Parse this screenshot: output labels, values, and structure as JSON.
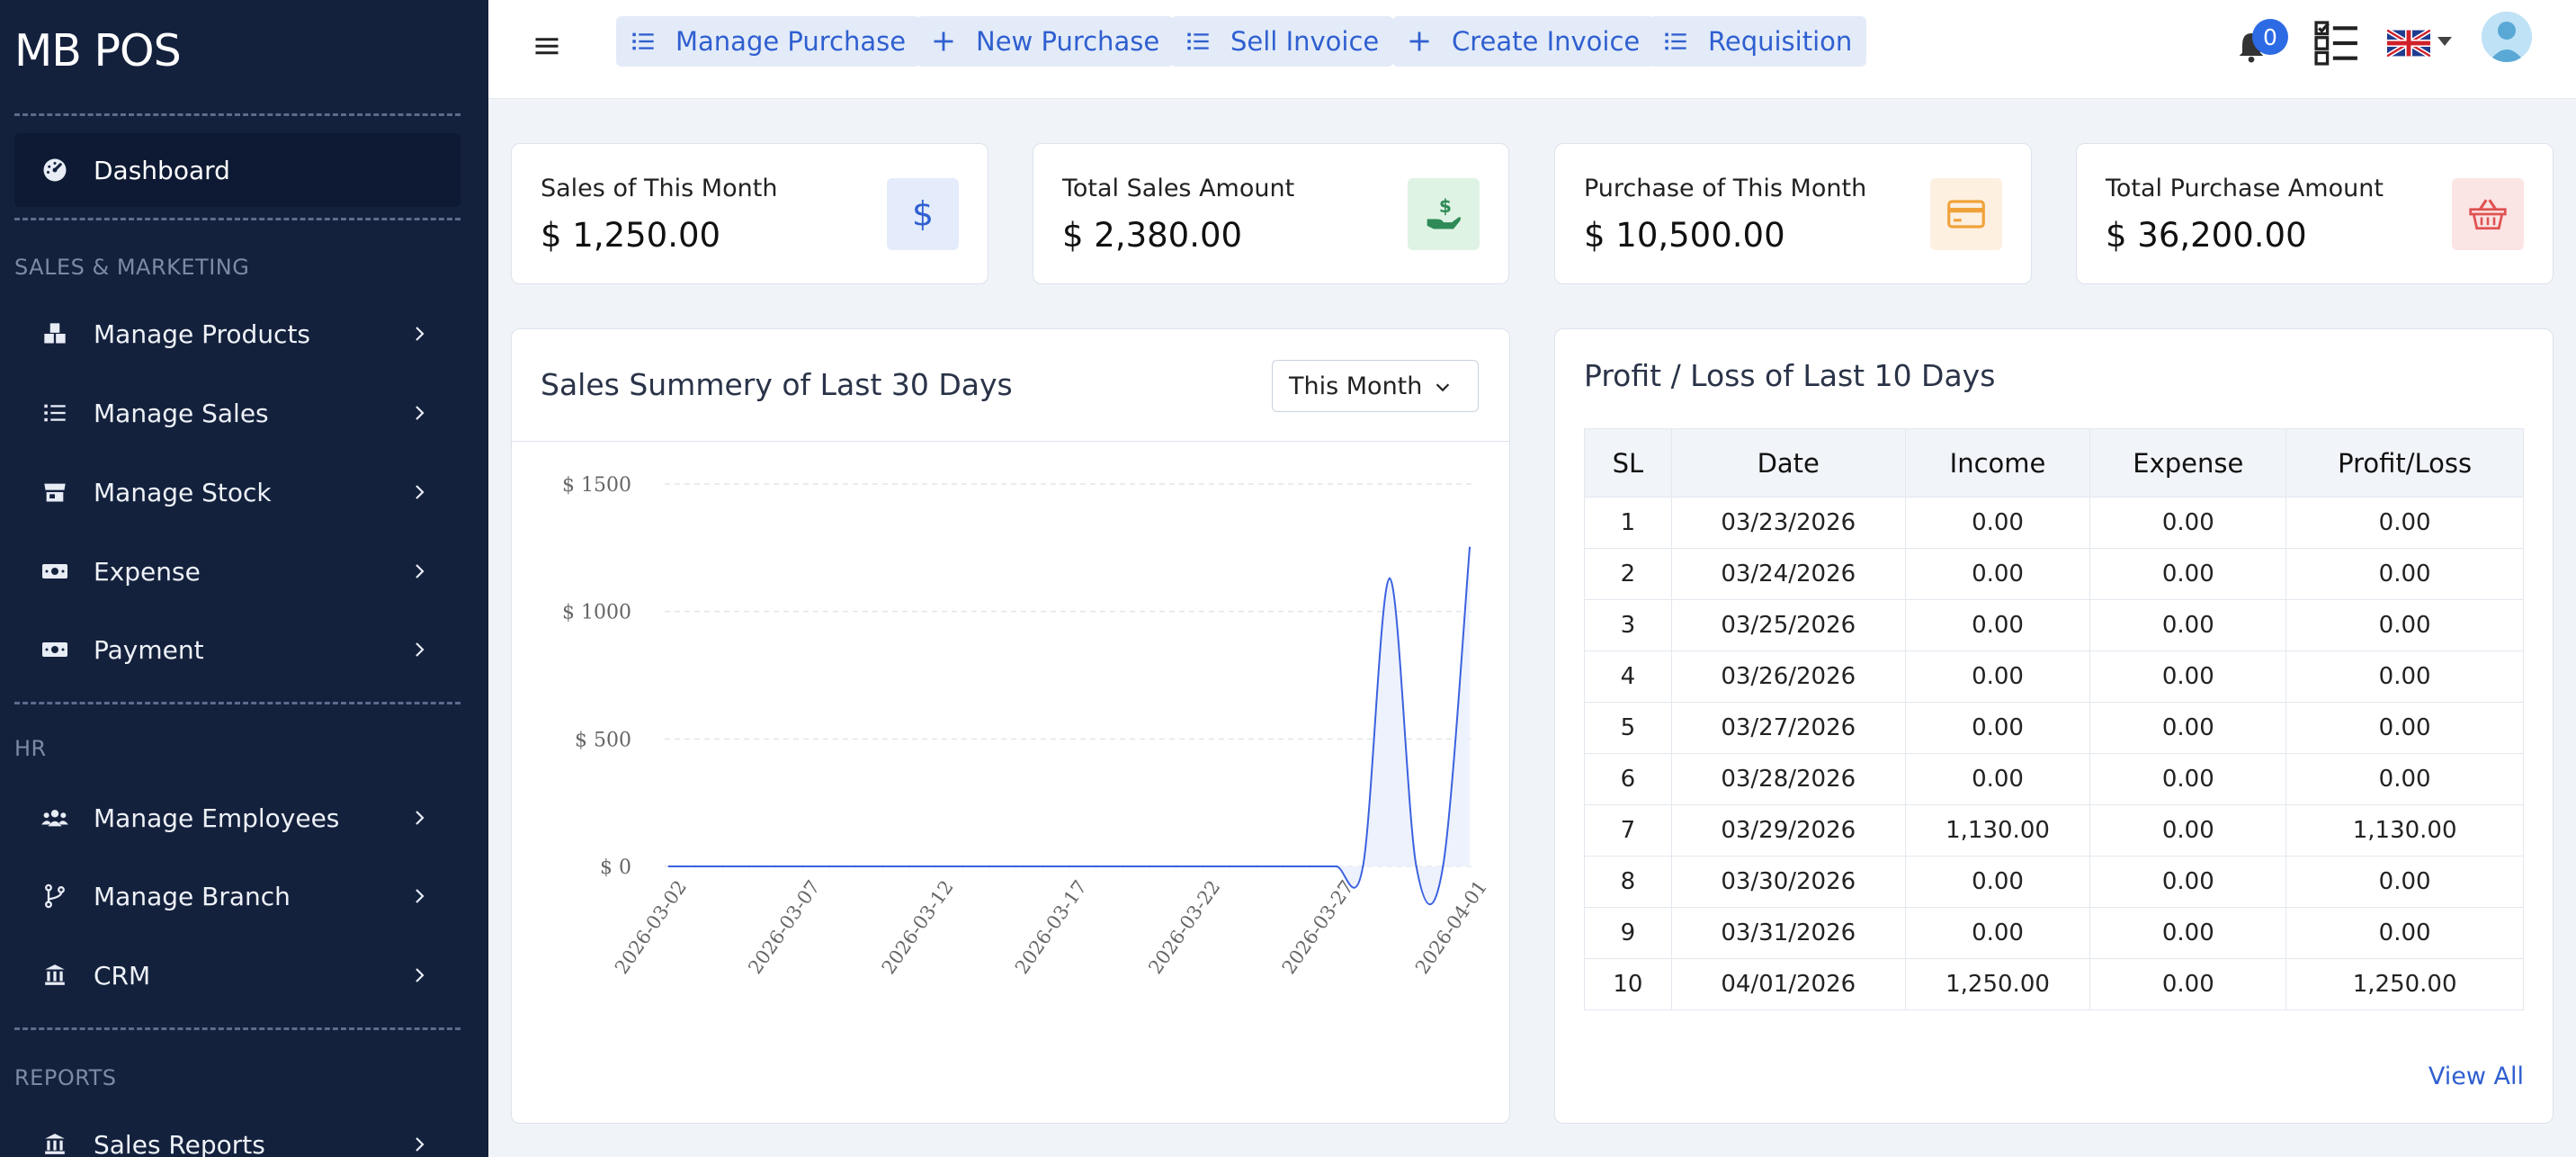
{
  "app": {
    "brand": "MB POS"
  },
  "sidebar": {
    "dashboard": "Dashboard",
    "sections": {
      "sales": "SALES & MARKETING",
      "hr": "HR",
      "reports": "REPORTS"
    },
    "items": [
      {
        "label": "Manage Products",
        "icon": "boxes-icon"
      },
      {
        "label": "Manage Sales",
        "icon": "list-icon"
      },
      {
        "label": "Manage Stock",
        "icon": "store-icon"
      },
      {
        "label": "Expense",
        "icon": "money-icon"
      },
      {
        "label": "Payment",
        "icon": "money-icon"
      },
      {
        "label": "Manage Employees",
        "icon": "users-icon"
      },
      {
        "label": "Manage Branch",
        "icon": "branch-icon"
      },
      {
        "label": "CRM",
        "icon": "building-icon"
      },
      {
        "label": "Sales Reports",
        "icon": "building-icon"
      }
    ]
  },
  "topbar": {
    "quick": [
      "Manage Purchase",
      "New Purchase",
      "Sell Invoice",
      "Create Invoice",
      "Requisition"
    ],
    "notifications": "0"
  },
  "stats": [
    {
      "title": "Sales of This Month",
      "value": "$ 1,250.00",
      "icon": "dollar-icon",
      "color": "#2f5fd0",
      "bg": "#e4ecfb"
    },
    {
      "title": "Total Sales Amount",
      "value": "$ 2,380.00",
      "icon": "hand-money-icon",
      "color": "#2e8b57",
      "bg": "#dff3e4"
    },
    {
      "title": "Purchase of This Month",
      "value": "$ 10,500.00",
      "icon": "credit-card-icon",
      "color": "#f0a23a",
      "bg": "#fdf0e1"
    },
    {
      "title": "Total Purchase Amount",
      "value": "$ 36,200.00",
      "icon": "basket-icon",
      "color": "#e05252",
      "bg": "#fbe4e4"
    }
  ],
  "sales_chart": {
    "title": "Sales Summery of Last 30 Days",
    "filter": "This Month"
  },
  "chart_data": {
    "type": "line",
    "title": "Sales Summery of Last 30 Days",
    "x": [
      "2026-03-02",
      "2026-03-03",
      "2026-03-04",
      "2026-03-05",
      "2026-03-06",
      "2026-03-07",
      "2026-03-08",
      "2026-03-09",
      "2026-03-10",
      "2026-03-11",
      "2026-03-12",
      "2026-03-13",
      "2026-03-14",
      "2026-03-15",
      "2026-03-16",
      "2026-03-17",
      "2026-03-18",
      "2026-03-19",
      "2026-03-20",
      "2026-03-21",
      "2026-03-22",
      "2026-03-23",
      "2026-03-24",
      "2026-03-25",
      "2026-03-26",
      "2026-03-27",
      "2026-03-28",
      "2026-03-29",
      "2026-03-30",
      "2026-03-31",
      "2026-04-01"
    ],
    "values": [
      0,
      0,
      0,
      0,
      0,
      0,
      0,
      0,
      0,
      0,
      0,
      0,
      0,
      0,
      0,
      0,
      0,
      0,
      0,
      0,
      0,
      0,
      0,
      0,
      0,
      0,
      0,
      1130,
      0,
      0,
      1250
    ],
    "x_ticks": [
      "2026-03-02",
      "2026-03-07",
      "2026-03-12",
      "2026-03-17",
      "2026-03-22",
      "2026-03-27",
      "2026-04-01"
    ],
    "y_ticks": [
      "$ 0",
      "$ 500",
      "$ 1000",
      "$ 1500"
    ],
    "ylim": [
      0,
      1500
    ],
    "color": "#3b62e0",
    "grid": true
  },
  "profit_loss": {
    "title": "Profit / Loss of Last 10 Days",
    "columns": [
      "SL",
      "Date",
      "Income",
      "Expense",
      "Profit/Loss"
    ],
    "rows": [
      [
        "1",
        "03/23/2026",
        "0.00",
        "0.00",
        "0.00"
      ],
      [
        "2",
        "03/24/2026",
        "0.00",
        "0.00",
        "0.00"
      ],
      [
        "3",
        "03/25/2026",
        "0.00",
        "0.00",
        "0.00"
      ],
      [
        "4",
        "03/26/2026",
        "0.00",
        "0.00",
        "0.00"
      ],
      [
        "5",
        "03/27/2026",
        "0.00",
        "0.00",
        "0.00"
      ],
      [
        "6",
        "03/28/2026",
        "0.00",
        "0.00",
        "0.00"
      ],
      [
        "7",
        "03/29/2026",
        "1,130.00",
        "0.00",
        "1,130.00"
      ],
      [
        "8",
        "03/30/2026",
        "0.00",
        "0.00",
        "0.00"
      ],
      [
        "9",
        "03/31/2026",
        "0.00",
        "0.00",
        "0.00"
      ],
      [
        "10",
        "04/01/2026",
        "1,250.00",
        "0.00",
        "1,250.00"
      ]
    ],
    "view_all": "View All"
  }
}
